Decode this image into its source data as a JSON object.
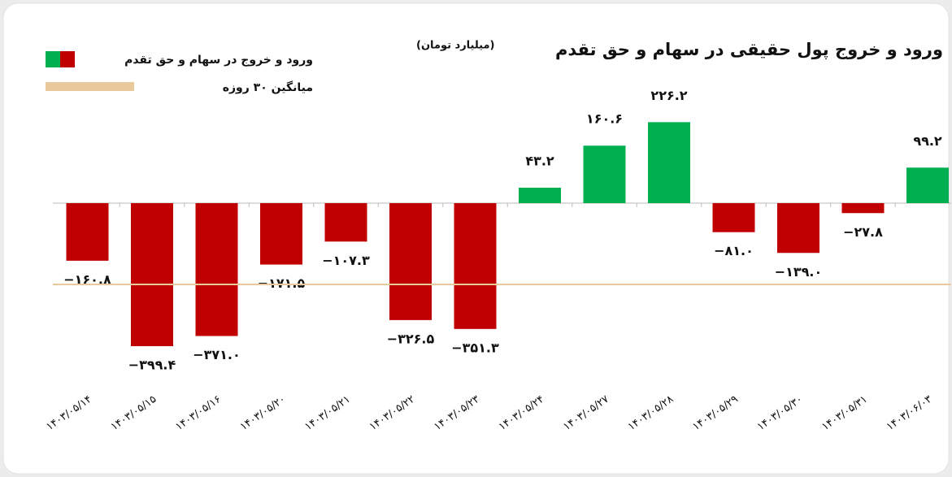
{
  "chart_data": {
    "type": "bar",
    "title": "ورود و خروج پول حقیقی در سهام و حق تقدم",
    "subtitle": "(میلیارد تومان)",
    "categories": [
      "۱۴۰۳/۰۵/۱۴",
      "۱۴۰۳/۰۵/۱۵",
      "۱۴۰۳/۰۵/۱۶",
      "۱۴۰۳/۰۵/۲۰",
      "۱۴۰۳/۰۵/۲۱",
      "۱۴۰۳/۰۵/۲۲",
      "۱۴۰۳/۰۵/۲۳",
      "۱۴۰۳/۰۵/۲۴",
      "۱۴۰۳/۰۵/۲۷",
      "۱۴۰۳/۰۵/۲۸",
      "۱۴۰۳/۰۵/۲۹",
      "۱۴۰۳/۰۵/۳۰",
      "۱۴۰۳/۰۵/۳۱",
      "۱۴۰۳/۰۶/۰۳"
    ],
    "series": [
      {
        "name": "ورود و خروج در سهام و حق تقدم",
        "positive_color": "#00b050",
        "negative_color": "#c00000",
        "values": [
          -160.8,
          -399.4,
          -371.0,
          -171.5,
          -107.3,
          -326.5,
          -351.3,
          43.2,
          160.6,
          226.2,
          -81.0,
          -139.0,
          -27.8,
          99.2
        ],
        "value_labels": [
          "−۱۶۰.۸",
          "−۳۹۹.۴",
          "−۳۷۱.۰",
          "−۱۷۱.۵",
          "−۱۰۷.۳",
          "−۳۲۶.۵",
          "−۳۵۱.۳",
          "۴۳.۲",
          "۱۶۰.۶",
          "۲۲۶.۲",
          "−۸۱.۰",
          "−۱۳۹.۰",
          "−۲۷.۸",
          "۹۹.۲"
        ]
      }
    ],
    "average": {
      "name": "میانگین ۳۰ روزه",
      "color": "#e8c99a",
      "value": -227
    }
  }
}
